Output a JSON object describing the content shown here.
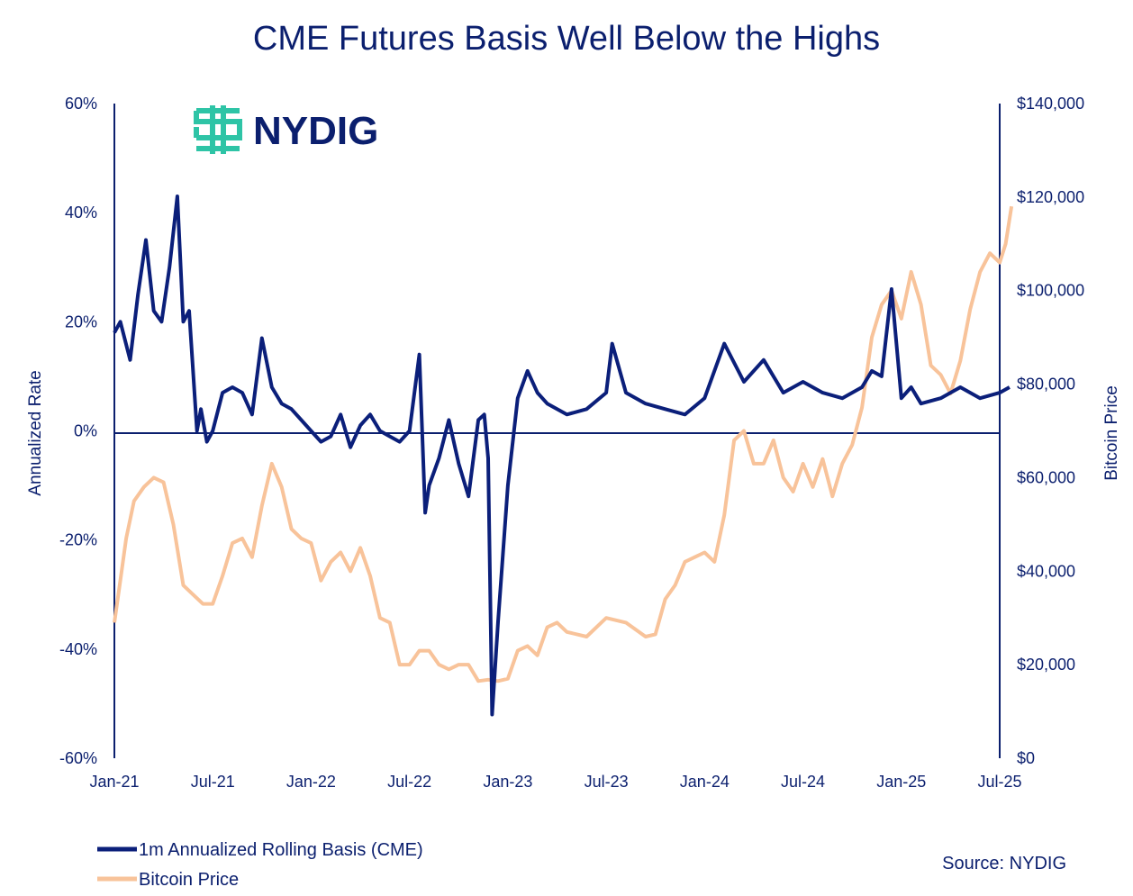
{
  "chart_data": {
    "type": "line",
    "title": "CME Futures Basis Well Below the Highs",
    "ylabel_left": "Annualized Rate",
    "ylabel_right": "Bitcoin Price",
    "source": "Source: NYDIG",
    "brand": "NYDIG",
    "x_start": "2021-01",
    "x_end": "2025-07",
    "x_ticks": [
      "Jan-21",
      "Jul-21",
      "Jan-22",
      "Jul-22",
      "Jan-23",
      "Jul-23",
      "Jan-24",
      "Jul-24",
      "Jan-25",
      "Jul-25"
    ],
    "ylim_left": [
      -60,
      60
    ],
    "y_ticks_left": [
      "60%",
      "40%",
      "20%",
      "0%",
      "-20%",
      "-40%",
      "-60%"
    ],
    "ylim_right": [
      0,
      140000
    ],
    "y_ticks_right": [
      "$140,000",
      "$120,000",
      "$100,000",
      "$80,000",
      "$60,000",
      "$40,000",
      "$20,000",
      "$0"
    ],
    "legend": [
      "1m Annualized Rolling Basis (CME)",
      "Bitcoin Price"
    ],
    "colors": {
      "basis": "#0b1f7a",
      "price": "#f8c39a",
      "brand": "#2ec4a6",
      "text": "#0b1f6e"
    },
    "series": [
      {
        "name": "1m Annualized Rolling Basis (CME)",
        "axis": "left",
        "x": [
          2021.0,
          2021.03,
          2021.08,
          2021.12,
          2021.16,
          2021.2,
          2021.24,
          2021.28,
          2021.32,
          2021.35,
          2021.38,
          2021.42,
          2021.44,
          2021.47,
          2021.5,
          2021.55,
          2021.6,
          2021.65,
          2021.7,
          2021.75,
          2021.8,
          2021.85,
          2021.9,
          2021.95,
          2022.0,
          2022.05,
          2022.1,
          2022.15,
          2022.2,
          2022.25,
          2022.3,
          2022.35,
          2022.4,
          2022.45,
          2022.5,
          2022.55,
          2022.58,
          2022.6,
          2022.65,
          2022.7,
          2022.75,
          2022.8,
          2022.85,
          2022.88,
          2022.9,
          2022.92,
          2022.95,
          2023.0,
          2023.05,
          2023.1,
          2023.15,
          2023.2,
          2023.3,
          2023.4,
          2023.5,
          2023.53,
          2023.6,
          2023.7,
          2023.8,
          2023.9,
          2024.0,
          2024.1,
          2024.2,
          2024.3,
          2024.4,
          2024.5,
          2024.6,
          2024.7,
          2024.8,
          2024.85,
          2024.9,
          2024.95,
          2025.0,
          2025.05,
          2025.1,
          2025.2,
          2025.3,
          2025.4,
          2025.5,
          2025.55
        ],
        "values": [
          18,
          20,
          13,
          25,
          35,
          22,
          20,
          30,
          43,
          20,
          22,
          0,
          4,
          -2,
          0,
          7,
          8,
          7,
          3,
          17,
          8,
          5,
          4,
          2,
          0,
          -2,
          -1,
          3,
          -3,
          1,
          3,
          0,
          -1,
          -2,
          0,
          14,
          -15,
          -10,
          -5,
          2,
          -6,
          -12,
          2,
          3,
          -5,
          -52,
          -35,
          -10,
          6,
          11,
          7,
          5,
          3,
          4,
          7,
          16,
          7,
          5,
          4,
          3,
          6,
          16,
          9,
          13,
          7,
          9,
          7,
          6,
          8,
          11,
          10,
          26,
          6,
          8,
          5,
          6,
          8,
          6,
          7,
          8
        ]
      },
      {
        "name": "Bitcoin Price",
        "axis": "right",
        "x": [
          2021.0,
          2021.03,
          2021.06,
          2021.1,
          2021.15,
          2021.2,
          2021.25,
          2021.3,
          2021.35,
          2021.4,
          2021.45,
          2021.5,
          2021.55,
          2021.6,
          2021.65,
          2021.7,
          2021.75,
          2021.8,
          2021.85,
          2021.9,
          2021.95,
          2022.0,
          2022.05,
          2022.1,
          2022.15,
          2022.2,
          2022.25,
          2022.3,
          2022.35,
          2022.4,
          2022.45,
          2022.5,
          2022.55,
          2022.6,
          2022.65,
          2022.7,
          2022.75,
          2022.8,
          2022.85,
          2022.9,
          2022.95,
          2023.0,
          2023.05,
          2023.1,
          2023.15,
          2023.2,
          2023.25,
          2023.3,
          2023.4,
          2023.5,
          2023.6,
          2023.7,
          2023.75,
          2023.8,
          2023.85,
          2023.9,
          2023.95,
          2024.0,
          2024.05,
          2024.1,
          2024.15,
          2024.2,
          2024.25,
          2024.3,
          2024.35,
          2024.4,
          2024.45,
          2024.5,
          2024.55,
          2024.6,
          2024.65,
          2024.7,
          2024.75,
          2024.8,
          2024.85,
          2024.9,
          2024.95,
          2025.0,
          2025.05,
          2025.1,
          2025.15,
          2025.2,
          2025.25,
          2025.3,
          2025.35,
          2025.4,
          2025.45,
          2025.5,
          2025.53,
          2025.56
        ],
        "values": [
          29000,
          38000,
          47000,
          55000,
          58000,
          60000,
          59000,
          50000,
          37000,
          35000,
          33000,
          33000,
          39000,
          46000,
          47000,
          43000,
          54000,
          63000,
          58000,
          49000,
          47000,
          46000,
          38000,
          42000,
          44000,
          40000,
          45000,
          39000,
          30000,
          29000,
          20000,
          20000,
          23000,
          23000,
          20000,
          19000,
          20000,
          20000,
          16500,
          16800,
          16500,
          17000,
          23000,
          24000,
          22000,
          28000,
          29000,
          27000,
          26000,
          30000,
          29000,
          26000,
          26500,
          34000,
          37000,
          42000,
          43000,
          44000,
          42000,
          52000,
          68000,
          70000,
          63000,
          63000,
          68000,
          60000,
          57000,
          63000,
          58000,
          64000,
          56000,
          63000,
          67000,
          75000,
          90000,
          97000,
          100000,
          94000,
          104000,
          97000,
          84000,
          82000,
          78000,
          85000,
          96000,
          104000,
          108000,
          106000,
          110000,
          118000
        ]
      }
    ]
  }
}
